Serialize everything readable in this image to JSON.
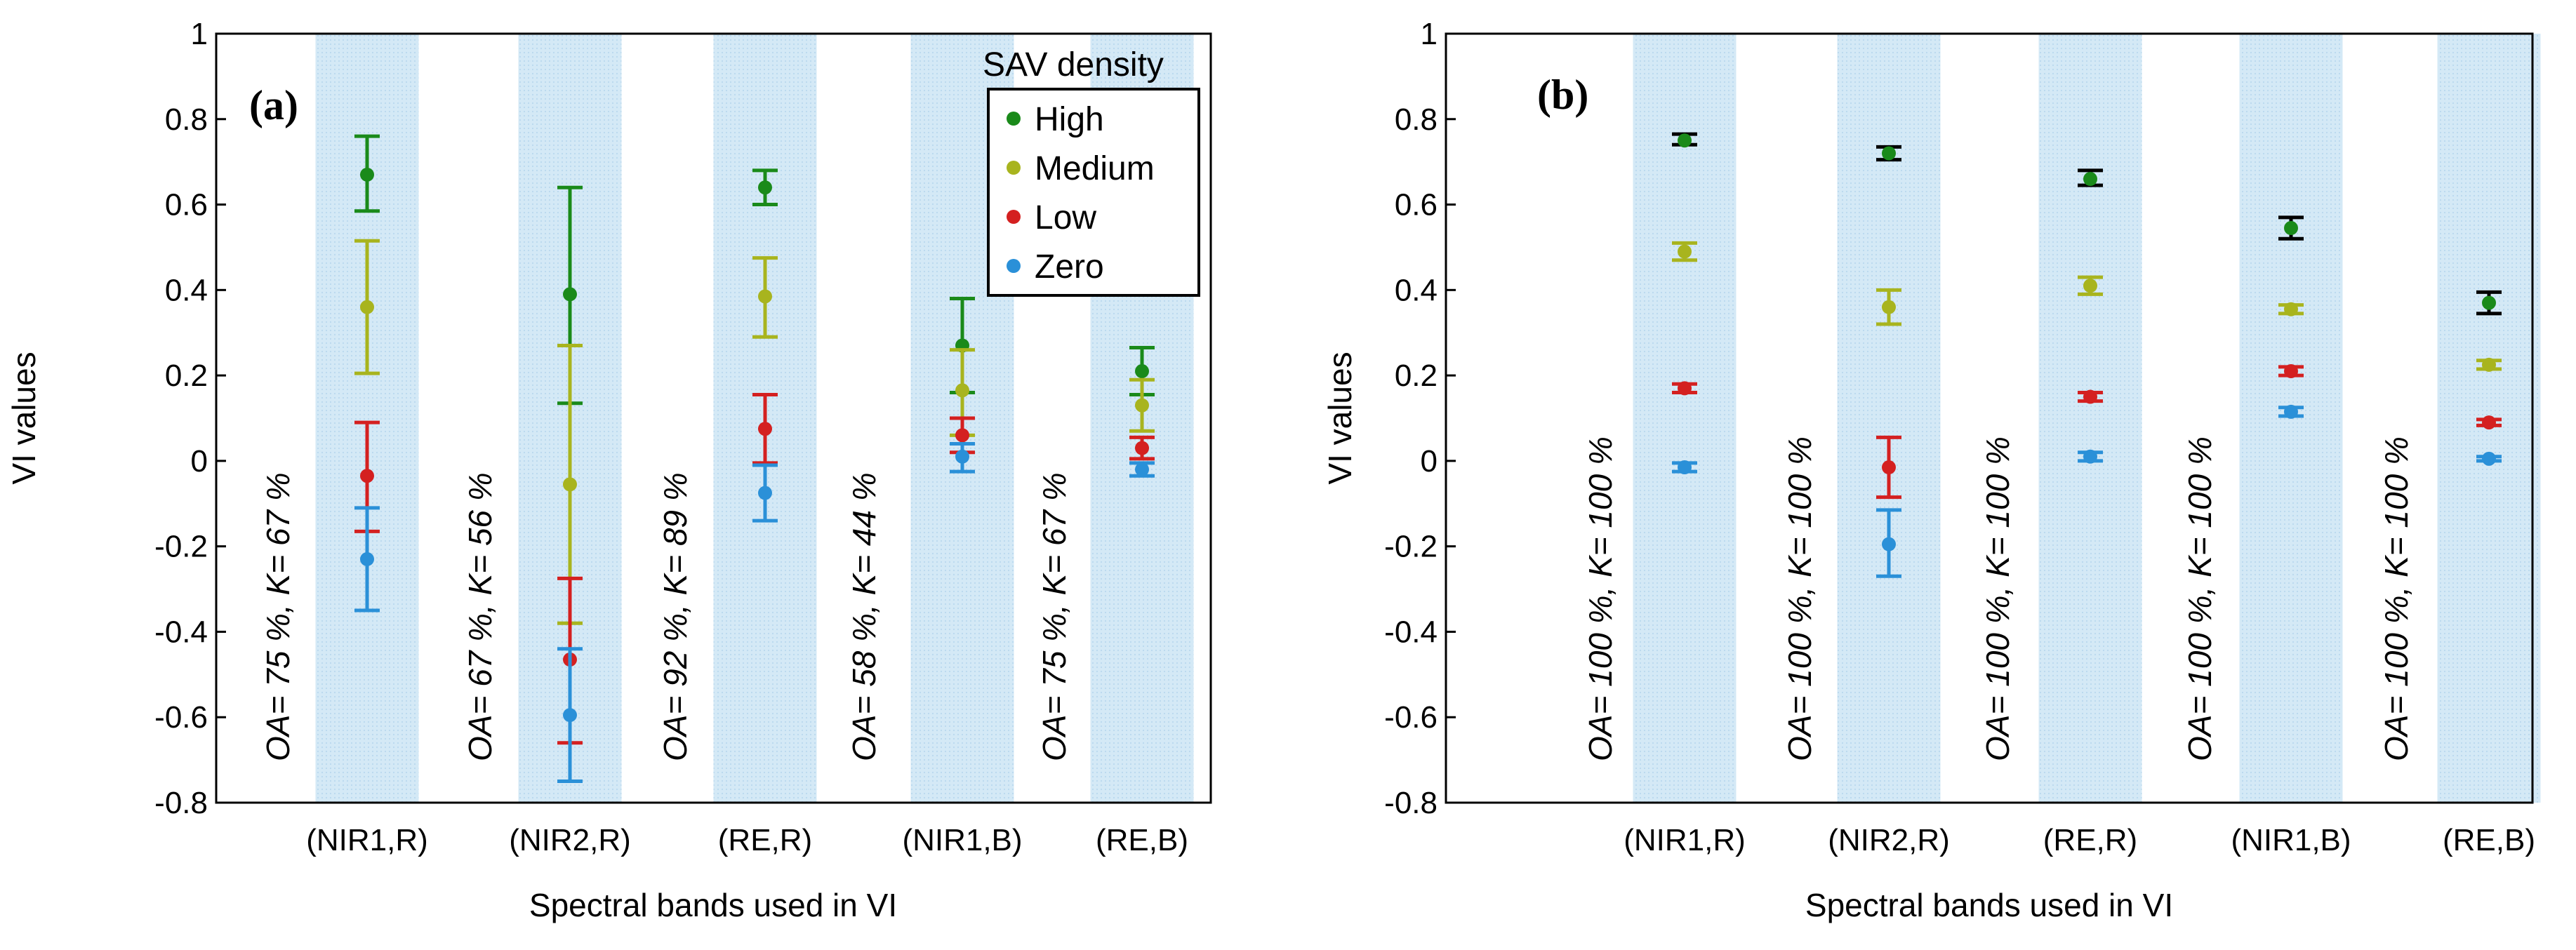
{
  "chart_data": [
    {
      "type": "scatter",
      "panel_label": "(a)",
      "xlabel": "Spectral bands used in VI",
      "ylabel": "VI values",
      "ylim": [
        -0.8,
        1
      ],
      "yticks": [
        "-0.8",
        "-0.6",
        "-0.4",
        "-0.2",
        "0",
        "0.2",
        "0.4",
        "0.6",
        "0.8",
        "1"
      ],
      "categories": [
        "(NIR1,R)",
        "(NIR2,R)",
        "(RE,R)",
        "(NIR1,B)",
        "(RE,B)"
      ],
      "shaded_bands": true,
      "annotations": [
        "OA= 75 %, K= 67 %",
        "OA= 67 %, K= 56 %",
        "OA= 92 %, K= 89 %",
        "OA= 58 %, K= 44 %",
        "OA= 75 %, K= 67 %"
      ],
      "legend": {
        "title": "SAV density",
        "placement": "top-right",
        "entries": [
          "High",
          "Medium",
          "Low",
          "Zero"
        ]
      },
      "series": [
        {
          "name": "High",
          "color": "#1a8a1a",
          "values": [
            0.67,
            0.39,
            0.64,
            0.27,
            0.21
          ],
          "err_low": [
            0.585,
            0.135,
            0.6,
            0.16,
            0.155
          ],
          "err_high": [
            0.76,
            0.64,
            0.68,
            0.38,
            0.265
          ]
        },
        {
          "name": "Medium",
          "color": "#a8b41e",
          "values": [
            0.36,
            -0.055,
            0.385,
            0.165,
            0.13
          ],
          "err_low": [
            0.205,
            -0.38,
            0.29,
            0.06,
            0.07
          ],
          "err_high": [
            0.515,
            0.27,
            0.475,
            0.26,
            0.19
          ]
        },
        {
          "name": "Low",
          "color": "#d42020",
          "values": [
            -0.035,
            -0.465,
            0.075,
            0.06,
            0.03
          ],
          "err_low": [
            -0.165,
            -0.66,
            -0.005,
            0.02,
            0.005
          ],
          "err_high": [
            0.09,
            -0.275,
            0.155,
            0.1,
            0.055
          ]
        },
        {
          "name": "Zero",
          "color": "#2a90d8",
          "values": [
            -0.23,
            -0.595,
            -0.075,
            0.01,
            -0.02
          ],
          "err_low": [
            -0.35,
            -0.75,
            -0.14,
            -0.025,
            -0.035
          ],
          "err_high": [
            -0.11,
            -0.44,
            -0.01,
            0.04,
            -0.005
          ]
        }
      ]
    },
    {
      "type": "scatter",
      "panel_label": "(b)",
      "xlabel": "Spectral bands used in VI",
      "ylabel": "VI values",
      "ylim": [
        -0.8,
        1
      ],
      "yticks": [
        "-0.8",
        "-0.6",
        "-0.4",
        "-0.2",
        "0",
        "0.2",
        "0.4",
        "0.6",
        "0.8",
        "1"
      ],
      "categories": [
        "(NIR1,R)",
        "(NIR2,R)",
        "(RE,R)",
        "(NIR1,B)",
        "(RE,B)"
      ],
      "shaded_bands": true,
      "annotations": [
        "OA= 100 %, K= 100 %",
        "OA= 100 %, K= 100 %",
        "OA= 100 %, K= 100 %",
        "OA= 100 %, K= 100 %",
        "OA= 100 %, K= 100 %"
      ],
      "series": [
        {
          "name": "High",
          "color": "#1a8a1a",
          "err_color": "#000000",
          "values": [
            0.75,
            0.72,
            0.66,
            0.545,
            0.37
          ],
          "err_low": [
            0.74,
            0.705,
            0.645,
            0.52,
            0.345
          ],
          "err_high": [
            0.765,
            0.735,
            0.68,
            0.57,
            0.395
          ]
        },
        {
          "name": "Medium",
          "color": "#a8b41e",
          "values": [
            0.49,
            0.36,
            0.41,
            0.355,
            0.225
          ],
          "err_low": [
            0.47,
            0.32,
            0.39,
            0.345,
            0.215
          ],
          "err_high": [
            0.51,
            0.4,
            0.43,
            0.365,
            0.235
          ]
        },
        {
          "name": "Low",
          "color": "#d42020",
          "values": [
            0.17,
            -0.015,
            0.15,
            0.21,
            0.09
          ],
          "err_low": [
            0.16,
            -0.085,
            0.14,
            0.2,
            0.083
          ],
          "err_high": [
            0.18,
            0.055,
            0.16,
            0.22,
            0.097
          ]
        },
        {
          "name": "Zero",
          "color": "#2a90d8",
          "values": [
            -0.015,
            -0.195,
            0.01,
            0.115,
            0.005
          ],
          "err_low": [
            -0.025,
            -0.27,
            0.0,
            0.105,
            0.0
          ],
          "err_high": [
            -0.005,
            -0.115,
            0.02,
            0.125,
            0.01
          ]
        }
      ]
    }
  ]
}
